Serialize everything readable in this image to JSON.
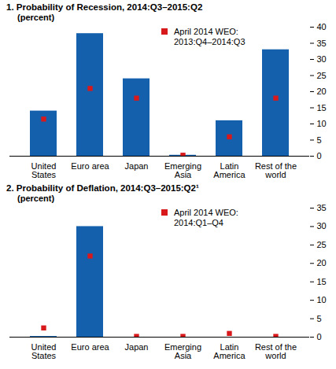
{
  "chart_data": [
    {
      "type": "bar",
      "title": "1. Probability of Recession, 2014:Q3–2015:Q2",
      "subtitle": "(percent)",
      "categories": [
        "United\nStates",
        "Euro area",
        "Japan",
        "Emerging\nAsia",
        "Latin\nAmerica",
        "Rest of the\nworld"
      ],
      "series": [
        {
          "type": "bar",
          "color": "#1560ad",
          "values": [
            14,
            38,
            24,
            0.3,
            11,
            33
          ]
        },
        {
          "name": "April 2014 WEO:\n2013:Q4–2014:Q3",
          "type": "scatter",
          "marker": "square",
          "color": "#d7191c",
          "values": [
            11.5,
            21,
            18,
            0.3,
            6,
            18
          ]
        }
      ],
      "ylim": [
        0,
        40
      ],
      "yticks": [
        0,
        5,
        10,
        15,
        20,
        25,
        30,
        35,
        40
      ],
      "grid": false,
      "legend": "top"
    },
    {
      "type": "bar",
      "title": "2. Probability of Deflation, 2014:Q3–2015:Q2¹",
      "subtitle": "(percent)",
      "categories": [
        "United\nStates",
        "Euro area",
        "Japan",
        "Emerging\nAsia",
        "Latin\nAmerica",
        "Rest of the\nworld"
      ],
      "series": [
        {
          "type": "bar",
          "color": "#1560ad",
          "values": [
            0.2,
            30,
            0,
            0,
            0,
            0
          ]
        },
        {
          "name": "April 2014 WEO:\n2014:Q1–Q4",
          "type": "scatter",
          "marker": "square",
          "color": "#d7191c",
          "values": [
            2.5,
            22,
            0.2,
            0.2,
            1,
            0.2
          ]
        }
      ],
      "ylim": [
        0,
        35
      ],
      "yticks": [
        0,
        5,
        10,
        15,
        20,
        25,
        30,
        35
      ],
      "grid": false,
      "legend": "top"
    }
  ]
}
